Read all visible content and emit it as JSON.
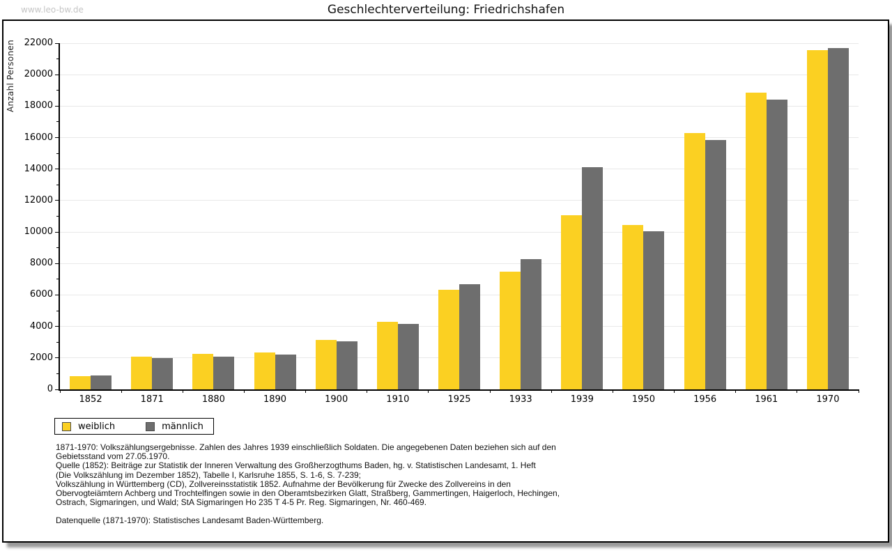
{
  "watermark": "www.leo-bw.de",
  "title": "Geschlechterverteilung: Friedrichshafen",
  "y_axis_title": "Anzahl Personen",
  "colors": {
    "weiblich": "#FBD022",
    "maennlich": "#6E6E6E",
    "gridline": "#E8E8E8",
    "watermark": "#C5C5C5"
  },
  "legend": {
    "items": [
      {
        "label": "weiblich",
        "color": "#FBD022"
      },
      {
        "label": "männlich",
        "color": "#6E6E6E"
      }
    ]
  },
  "chart_data": {
    "type": "bar",
    "title": "Geschlechterverteilung: Friedrichshafen",
    "xlabel": "",
    "ylabel": "Anzahl Personen",
    "categories": [
      "1852",
      "1871",
      "1880",
      "1890",
      "1900",
      "1910",
      "1925",
      "1933",
      "1939",
      "1950",
      "1956",
      "1961",
      "1970"
    ],
    "series": [
      {
        "name": "weiblich",
        "color": "#FBD022",
        "values": [
          850,
          2070,
          2270,
          2330,
          3150,
          4300,
          6350,
          7470,
          11050,
          10430,
          16300,
          18850,
          21570
        ]
      },
      {
        "name": "männlich",
        "color": "#6E6E6E",
        "values": [
          900,
          2010,
          2060,
          2200,
          3060,
          4170,
          6670,
          8260,
          14100,
          10070,
          15860,
          18400,
          21690
        ]
      }
    ],
    "ylim": [
      0,
      22000
    ],
    "ytick_major_step": 2000,
    "ytick_minor_step": 1000,
    "grid": true,
    "legend_position": "bottom-left"
  },
  "footnotes": {
    "lines": [
      "1871-1970: Volkszählungsergebnisse. Zahlen des Jahres 1939 einschließlich Soldaten. Die angegebenen Daten beziehen sich auf den",
      "Gebietsstand vom 27.05.1970.",
      "Quelle (1852): Beiträge zur Statistik der Inneren Verwaltung des Großherzogthums Baden, hg. v. Statistischen Landesamt, 1. Heft",
      "(Die Volkszählung im Dezember 1852), Tabelle I, Karlsruhe 1855, S. 1-6, S. 7-239;",
      "Volkszählung in Württemberg (CD), Zollvereinsstatistik 1852. Aufnahme der Bevölkerung für Zwecke des Zollvereins in den",
      "Obervogteiämtern Achberg und Trochtelfingen sowie in den Oberamtsbezirken Glatt, Straßberg, Gammertingen, Haigerloch, Hechingen,",
      "Ostrach, Sigmaringen, und Wald; StA Sigmaringen Ho 235 T 4-5 Pr. Reg. Sigmaringen, Nr. 460-469."
    ],
    "datasource": "Datenquelle (1871-1970): Statistisches Landesamt Baden-Württemberg."
  }
}
